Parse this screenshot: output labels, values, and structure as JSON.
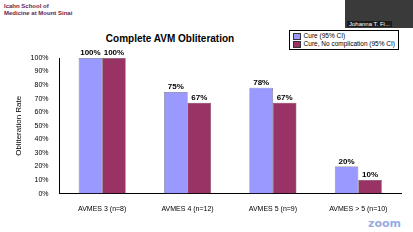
{
  "slide": {
    "logo": "Icahn School of Medicine at Mount Sinai",
    "participant": "Johanna T. Fi...",
    "watermark": "zoom"
  },
  "chart_data": {
    "type": "bar",
    "title": "Complete AVM Obliteration",
    "y_label": "Obliteration Rate",
    "categories": [
      "AVMES 3 (n=8)",
      "AVMES 4 (n=12)",
      "AVMES 5 (n=9)",
      "AVMES > 5 (n=10)"
    ],
    "series": [
      {
        "name": "Cure (95% CI)",
        "color": "#9999ff",
        "values": [
          100,
          75,
          78,
          20
        ],
        "value_labels": [
          "100%",
          "75%",
          "78%",
          "20%"
        ]
      },
      {
        "name": "Cure, No complication (95% CI)",
        "color": "#993366",
        "values": [
          100,
          67,
          67,
          10
        ],
        "value_labels": [
          "100%",
          "67%",
          "67%",
          "10%"
        ]
      }
    ],
    "ylim": [
      0,
      100
    ],
    "yticks": [
      {
        "value": 0,
        "label": "0%"
      },
      {
        "value": 10,
        "label": "10%"
      },
      {
        "value": 20,
        "label": "20%"
      },
      {
        "value": 30,
        "label": "30%"
      },
      {
        "value": 40,
        "label": "40%"
      },
      {
        "value": 50,
        "label": "50%"
      },
      {
        "value": 60,
        "label": "60%"
      },
      {
        "value": 70,
        "label": "70%"
      },
      {
        "value": 80,
        "label": "80%"
      },
      {
        "value": 90,
        "label": "90%"
      },
      {
        "value": 100,
        "label": "100%"
      }
    ],
    "grid": false,
    "legend": "upper right",
    "data_labels": true
  }
}
